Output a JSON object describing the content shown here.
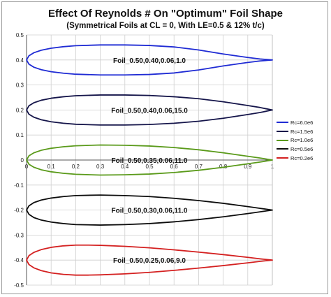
{
  "chart_data": {
    "type": "line",
    "title": "Effect Of Reynolds # On \"Optimum\" Foil Shape",
    "subtitle": "(Symmetrical Foils at CL = 0, With LE=0.5 & 12% t/c)",
    "xlim": [
      0,
      1
    ],
    "ylim": [
      -0.5,
      0.5
    ],
    "x_ticks": [
      "0",
      "0.1",
      "0.2",
      "0.3",
      "0.4",
      "0.5",
      "0.6",
      "0.7",
      "0.8",
      "0.9",
      "1"
    ],
    "y_ticks": [
      "0.5",
      "0.4",
      "0.3",
      "0.2",
      "0.1",
      "0",
      "-0.1",
      "-0.2",
      "-0.3",
      "-0.4",
      "-0.5"
    ],
    "grid": true,
    "legend_position": "right",
    "series": [
      {
        "name": "Rc=6.0e6",
        "color": "#1f2bd4",
        "label": "Foil_0.50,0.40,0.06,1.0",
        "offset": 0.4,
        "x": [
          0,
          0.01,
          0.03,
          0.06,
          0.1,
          0.15,
          0.2,
          0.3,
          0.4,
          0.5,
          0.6,
          0.7,
          0.8,
          0.9,
          0.95,
          1.0
        ],
        "upper": [
          0,
          0.017,
          0.029,
          0.039,
          0.047,
          0.053,
          0.057,
          0.06,
          0.06,
          0.058,
          0.052,
          0.04,
          0.024,
          0.01,
          0.004,
          0
        ],
        "lower": [
          0,
          -0.017,
          -0.029,
          -0.039,
          -0.047,
          -0.053,
          -0.057,
          -0.06,
          -0.06,
          -0.058,
          -0.052,
          -0.04,
          -0.024,
          -0.01,
          -0.004,
          0
        ]
      },
      {
        "name": "Rc=1.5e6",
        "color": "#15154a",
        "label": "Foil_0.50,0.40,0.06,15.0",
        "offset": 0.2,
        "x": [
          0,
          0.01,
          0.03,
          0.06,
          0.1,
          0.15,
          0.2,
          0.3,
          0.4,
          0.5,
          0.6,
          0.7,
          0.8,
          0.9,
          0.95,
          1.0
        ],
        "upper": [
          0,
          0.017,
          0.029,
          0.039,
          0.047,
          0.053,
          0.057,
          0.06,
          0.06,
          0.058,
          0.053,
          0.045,
          0.033,
          0.018,
          0.01,
          0
        ],
        "lower": [
          0,
          -0.017,
          -0.029,
          -0.039,
          -0.047,
          -0.053,
          -0.057,
          -0.06,
          -0.06,
          -0.058,
          -0.053,
          -0.045,
          -0.033,
          -0.018,
          -0.01,
          0
        ]
      },
      {
        "name": "Rc=1.0e6",
        "color": "#5a9a1a",
        "label": "Foil_0.50,0.35,0.06,11.0",
        "offset": 0.0,
        "x": [
          0,
          0.01,
          0.03,
          0.06,
          0.1,
          0.15,
          0.2,
          0.3,
          0.4,
          0.5,
          0.6,
          0.7,
          0.8,
          0.9,
          0.95,
          1.0
        ],
        "upper": [
          0,
          0.017,
          0.029,
          0.039,
          0.047,
          0.053,
          0.057,
          0.06,
          0.059,
          0.056,
          0.05,
          0.041,
          0.029,
          0.015,
          0.008,
          0
        ],
        "lower": [
          0,
          -0.017,
          -0.029,
          -0.039,
          -0.047,
          -0.053,
          -0.057,
          -0.06,
          -0.059,
          -0.056,
          -0.05,
          -0.041,
          -0.029,
          -0.015,
          -0.008,
          0
        ]
      },
      {
        "name": "Rc=0.5e6",
        "color": "#0d0d0d",
        "label": "Foil_0.50,0.30,0.06,11.0",
        "offset": -0.2,
        "x": [
          0,
          0.01,
          0.03,
          0.06,
          0.1,
          0.15,
          0.2,
          0.3,
          0.4,
          0.5,
          0.6,
          0.7,
          0.8,
          0.9,
          0.95,
          1.0
        ],
        "upper": [
          0,
          0.017,
          0.03,
          0.04,
          0.048,
          0.054,
          0.058,
          0.06,
          0.058,
          0.054,
          0.047,
          0.038,
          0.027,
          0.014,
          0.007,
          0
        ],
        "lower": [
          0,
          -0.017,
          -0.03,
          -0.04,
          -0.048,
          -0.054,
          -0.058,
          -0.06,
          -0.058,
          -0.054,
          -0.047,
          -0.038,
          -0.027,
          -0.014,
          -0.007,
          0
        ]
      },
      {
        "name": "Rc=0.2e6",
        "color": "#d42020",
        "label": "Foil_0.50,0.25,0.06,9.0",
        "offset": -0.4,
        "x": [
          0,
          0.01,
          0.03,
          0.06,
          0.1,
          0.15,
          0.2,
          0.25,
          0.3,
          0.4,
          0.5,
          0.6,
          0.7,
          0.8,
          0.9,
          0.95,
          1.0
        ],
        "upper": [
          0,
          0.018,
          0.031,
          0.042,
          0.051,
          0.057,
          0.06,
          0.06,
          0.059,
          0.055,
          0.049,
          0.041,
          0.032,
          0.022,
          0.011,
          0.005,
          0
        ],
        "lower": [
          0,
          -0.018,
          -0.031,
          -0.042,
          -0.051,
          -0.057,
          -0.06,
          -0.06,
          -0.059,
          -0.055,
          -0.049,
          -0.041,
          -0.032,
          -0.022,
          -0.011,
          -0.005,
          0
        ]
      }
    ]
  }
}
